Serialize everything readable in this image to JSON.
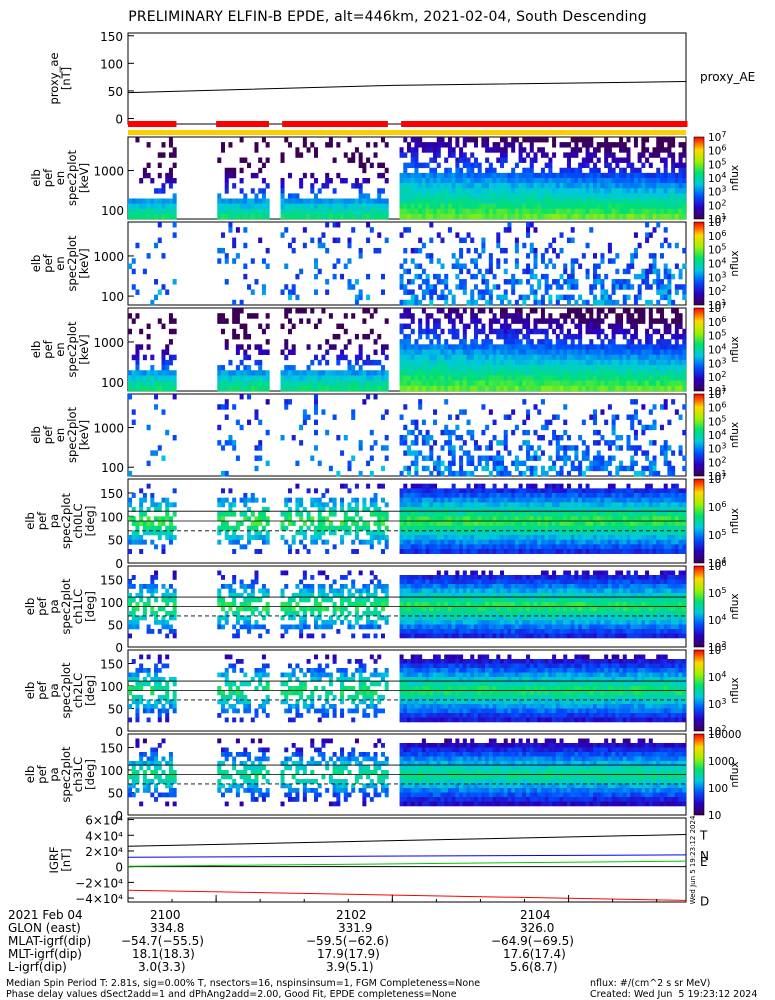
{
  "title": "PRELIMINARY ELFIN-B EPDE, alt=446km, 2021-02-04, South Descending",
  "chart_data": [
    {
      "type": "line",
      "panel": "proxy_ae",
      "ylabel": [
        "proxy_ae",
        "[nT]"
      ],
      "yticks": [
        "150",
        "100",
        "50",
        "0"
      ],
      "ylim": [
        -10,
        155
      ],
      "series": [
        {
          "name": "proxy_AE",
          "x": [
            "20:59:00",
            "21:02:00",
            "21:05:20"
          ],
          "y": [
            47,
            60,
            67
          ],
          "color": "#000000"
        }
      ]
    },
    {
      "type": "bar-strip",
      "panel": "coverage-bars",
      "colors": {
        "top": "#ff0000",
        "bottom": "#ffcc00"
      },
      "segments_minutes": [
        [
          -1.0,
          -0.45
        ],
        [
          0.0,
          0.6
        ],
        [
          0.75,
          1.95
        ],
        [
          2.1,
          5.35
        ]
      ]
    },
    {
      "type": "heatmap",
      "panel": "pef-en-1",
      "ylabel": [
        "elb",
        "pef",
        "en",
        "spec2plot",
        "[keV]"
      ],
      "yticks": [
        "1000",
        "100"
      ],
      "ylog": true,
      "ylim": [
        60,
        7000
      ],
      "colorbar_label": "nflux",
      "colorbar_ticks": [
        "10^7",
        "10^6",
        "10^5",
        "10^4",
        "10^3",
        "10^2",
        "10^1"
      ]
    },
    {
      "type": "heatmap",
      "panel": "pef-en-2",
      "ylabel": [
        "elb",
        "pef",
        "en",
        "spec2plot",
        "[keV]"
      ],
      "yticks": [
        "1000",
        "100"
      ],
      "ylog": true,
      "ylim": [
        60,
        7000
      ],
      "colorbar_label": "nflux",
      "colorbar_ticks": [
        "10^7",
        "10^6",
        "10^5",
        "10^4",
        "10^3",
        "10^2",
        "10^1"
      ]
    },
    {
      "type": "heatmap",
      "panel": "pef-en-3",
      "ylabel": [
        "elb",
        "pef",
        "en",
        "spec2plot",
        "[keV]"
      ],
      "yticks": [
        "1000",
        "100"
      ],
      "ylog": true,
      "ylim": [
        60,
        7000
      ],
      "colorbar_label": "nflux",
      "colorbar_ticks": [
        "10^7",
        "10^6",
        "10^5",
        "10^4",
        "10^3",
        "10^2",
        "10^1"
      ]
    },
    {
      "type": "heatmap",
      "panel": "pef-en-4",
      "ylabel": [
        "elb",
        "pef",
        "en",
        "spec2plot",
        "[keV]"
      ],
      "yticks": [
        "1000",
        "100"
      ],
      "ylog": true,
      "ylim": [
        60,
        7000
      ],
      "colorbar_label": "nflux",
      "colorbar_ticks": [
        "10^7",
        "10^6",
        "10^5",
        "10^4",
        "10^3",
        "10^2",
        "10^1"
      ]
    },
    {
      "type": "heatmap",
      "panel": "pa-ch0",
      "ylabel": [
        "elb",
        "pef",
        "pa",
        "spec2plot",
        "ch0LC",
        "[deg]"
      ],
      "yticks": [
        "150",
        "100",
        "50",
        "0"
      ],
      "ylim": [
        0,
        180
      ],
      "colorbar_label": "nflux",
      "colorbar_ticks": [
        "10^7",
        "10^6",
        "10^5",
        "10^4"
      ]
    },
    {
      "type": "heatmap",
      "panel": "pa-ch1",
      "ylabel": [
        "elb",
        "pef",
        "pa",
        "spec2plot",
        "ch1LC",
        "[deg]"
      ],
      "yticks": [
        "150",
        "100",
        "50",
        "0"
      ],
      "ylim": [
        0,
        180
      ],
      "colorbar_label": "nflux",
      "colorbar_ticks": [
        "10^6",
        "10^5",
        "10^4",
        "10^3"
      ]
    },
    {
      "type": "heatmap",
      "panel": "pa-ch2",
      "ylabel": [
        "elb",
        "pef",
        "pa",
        "spec2plot",
        "ch2LC",
        "[deg]"
      ],
      "yticks": [
        "150",
        "100",
        "50",
        "0"
      ],
      "ylim": [
        0,
        180
      ],
      "colorbar_label": "nflux",
      "colorbar_ticks": [
        "10^5",
        "10^4",
        "10^3",
        "10^2"
      ]
    },
    {
      "type": "heatmap",
      "panel": "pa-ch3",
      "ylabel": [
        "elb",
        "pef",
        "pa",
        "spec2plot",
        "ch3LC",
        "[deg]"
      ],
      "yticks": [
        "150",
        "100",
        "50",
        "0"
      ],
      "ylim": [
        0,
        180
      ],
      "colorbar_label": "nflux",
      "colorbar_ticks": [
        "10000",
        "1000",
        "100",
        "10"
      ]
    },
    {
      "type": "line",
      "panel": "igrf",
      "ylabel": [
        "IGRF",
        "[nT]"
      ],
      "yticks": [
        "6×10⁴",
        "4×10⁴",
        "2×10⁴",
        "0",
        "−2×10⁴",
        "−4×10⁴"
      ],
      "ylim": [
        -45000,
        62000
      ],
      "side_note": "Wed Jun  5 19:23:12 2024",
      "series": [
        {
          "name": "T",
          "x": [
            "20:59:00",
            "21:05:20"
          ],
          "y": [
            26000,
            41000
          ],
          "color": "#000000"
        },
        {
          "name": "N",
          "x": [
            "20:59:00",
            "21:05:20"
          ],
          "y": [
            12000,
            15000
          ],
          "color": "#0000ff"
        },
        {
          "name": "E",
          "x": [
            "20:59:00",
            "21:05:20"
          ],
          "y": [
            500,
            7000
          ],
          "color": "#00cc00"
        },
        {
          "name": "D",
          "x": [
            "20:59:00",
            "21:05:20"
          ],
          "y": [
            -30000,
            -43000
          ],
          "color": "#ff0000"
        }
      ],
      "reference_line": {
        "y": 0,
        "color": "#000000"
      }
    }
  ],
  "x_axis": {
    "ticks": [
      "2100",
      "2102",
      "2104"
    ],
    "rows": [
      {
        "label": "2021 Feb 04",
        "values": [
          "2100",
          "2102",
          "2104"
        ]
      },
      {
        "label": "GLON (east)",
        "values": [
          "334.8",
          "331.9",
          "326.0"
        ]
      },
      {
        "label": "MLAT-igrf(dip)",
        "values": [
          "−54.7(−55.5)",
          "−59.5(−62.6)",
          "−64.9(−69.5)"
        ]
      },
      {
        "label": "MLT-igrf(dip)",
        "values": [
          "18.1(18.3)",
          "17.9(17.9)",
          "17.6(17.4)"
        ]
      },
      {
        "label": "L-igrf(dip)",
        "values": [
          "3.0(3.3)",
          "3.9(5.1)",
          "5.6(8.7)"
        ]
      }
    ]
  },
  "footer": {
    "line1": "Median Spin Period T: 2.81s, sig=0.00% T, nsectors=16, nspinsinsum=1, FGM Completeness=None",
    "line2": "Phase delay values dSect2add=1 and dPhAng2add=2.00, Good Fit, EPDE completeness=None",
    "units": "nflux: #/(cm^2 s sr MeV)",
    "created": "Created: Wed Jun  5 19:23:12 2024"
  }
}
